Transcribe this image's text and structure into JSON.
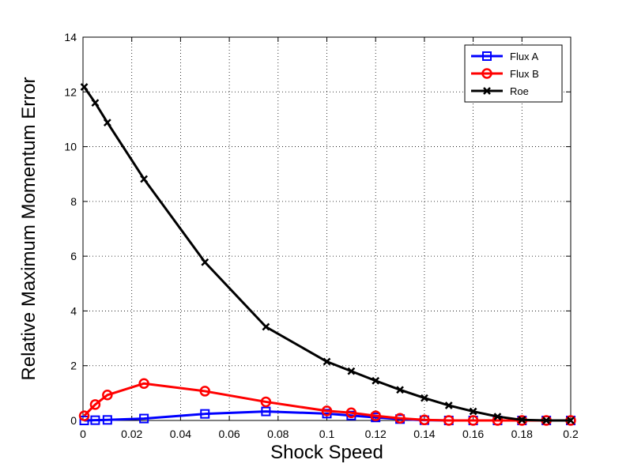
{
  "chart_data": {
    "type": "line",
    "xlabel": "Shock Speed",
    "ylabel": "Relative Maximum Momentum Error",
    "xlim": [
      0,
      0.2
    ],
    "ylim": [
      0,
      14
    ],
    "xticks": [
      0,
      0.02,
      0.04,
      0.06,
      0.08,
      0.1,
      0.12,
      0.14,
      0.16,
      0.18,
      0.2
    ],
    "yticks": [
      0,
      2,
      4,
      6,
      8,
      10,
      12,
      14
    ],
    "grid": true,
    "legend_position": "top-right",
    "series": [
      {
        "name": "Flux A",
        "color": "#0000ff",
        "marker": "square",
        "x": [
          0.0005,
          0.005,
          0.01,
          0.025,
          0.05,
          0.075,
          0.1,
          0.11,
          0.12,
          0.13,
          0.14,
          0.15,
          0.16,
          0.17,
          0.18,
          0.19,
          0.2
        ],
        "y": [
          0.0,
          0.01,
          0.02,
          0.07,
          0.24,
          0.33,
          0.25,
          0.18,
          0.11,
          0.05,
          0.01,
          0.0,
          0.0,
          0.0,
          0.0,
          0.0,
          0.0
        ]
      },
      {
        "name": "Flux B",
        "color": "#ff0000",
        "marker": "circle",
        "x": [
          0.0005,
          0.005,
          0.01,
          0.025,
          0.05,
          0.075,
          0.1,
          0.11,
          0.12,
          0.13,
          0.14,
          0.15,
          0.16,
          0.17,
          0.18,
          0.19,
          0.2
        ],
        "y": [
          0.17,
          0.58,
          0.93,
          1.35,
          1.07,
          0.68,
          0.35,
          0.28,
          0.17,
          0.08,
          0.02,
          0.0,
          0.0,
          0.0,
          0.0,
          0.0,
          0.0
        ]
      },
      {
        "name": "Roe",
        "color": "#000000",
        "marker": "x",
        "x": [
          0.0005,
          0.005,
          0.01,
          0.025,
          0.05,
          0.075,
          0.1,
          0.11,
          0.12,
          0.13,
          0.14,
          0.15,
          0.16,
          0.17,
          0.18,
          0.19,
          0.2
        ],
        "y": [
          12.18,
          11.6,
          10.88,
          8.82,
          5.78,
          3.42,
          2.15,
          1.8,
          1.45,
          1.12,
          0.82,
          0.55,
          0.33,
          0.14,
          0.02,
          0.0,
          0.0
        ]
      }
    ]
  }
}
